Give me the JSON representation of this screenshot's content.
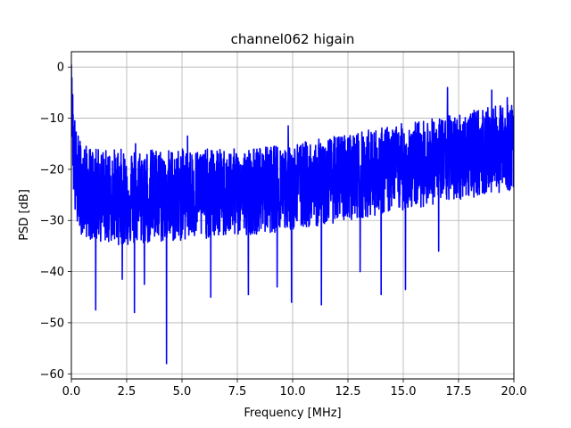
{
  "chart_data": {
    "type": "line",
    "title": "channel062 higain",
    "xlabel": "Frequency [MHz]",
    "ylabel": "PSD [dB]",
    "xlim": [
      0,
      20
    ],
    "ylim": [
      -61,
      3
    ],
    "xticks": [
      0,
      2.5,
      5,
      7.5,
      10,
      12.5,
      15,
      17.5,
      20
    ],
    "xtick_labels": [
      "0.0",
      "2.5",
      "5.0",
      "7.5",
      "10.0",
      "12.5",
      "15.0",
      "17.5",
      "20.0"
    ],
    "yticks": [
      0,
      -10,
      -20,
      -30,
      -40,
      -50,
      -60
    ],
    "ytick_labels": [
      "0",
      "−10",
      "−20",
      "−30",
      "−40",
      "−50",
      "−60"
    ],
    "grid": true,
    "series": [
      {
        "color": "#0000ff",
        "envelope": {
          "x": [
            0.0,
            0.1,
            0.2,
            0.5,
            1.0,
            2.5,
            5.0,
            7.5,
            10.0,
            12.5,
            15.0,
            17.5,
            20.0
          ],
          "upper": [
            0.0,
            -6,
            -12,
            -15,
            -16,
            -16,
            -16,
            -16,
            -15,
            -13,
            -11,
            -9,
            -7
          ],
          "lower": [
            -10,
            -25,
            -31,
            -33,
            -34,
            -35,
            -34,
            -33,
            -32,
            -30,
            -28,
            -26,
            -24
          ],
          "center": [
            -5,
            -16,
            -22,
            -24,
            -25,
            -25.5,
            -25,
            -24.5,
            -23.5,
            -21.5,
            -19.5,
            -17.5,
            -15.5
          ]
        },
        "peaks": [
          {
            "x": 0.0,
            "y": 0.5
          },
          {
            "x": 2.9,
            "y": -15
          },
          {
            "x": 5.25,
            "y": -13.5
          },
          {
            "x": 9.8,
            "y": -11.5
          },
          {
            "x": 14.0,
            "y": -9.5
          },
          {
            "x": 17.0,
            "y": -4
          },
          {
            "x": 19.0,
            "y": -4.5
          },
          {
            "x": 19.7,
            "y": -6
          }
        ],
        "dips": [
          {
            "x": 1.1,
            "y": -47.5
          },
          {
            "x": 2.3,
            "y": -41.5
          },
          {
            "x": 2.85,
            "y": -48
          },
          {
            "x": 3.3,
            "y": -42.5
          },
          {
            "x": 4.3,
            "y": -58
          },
          {
            "x": 6.3,
            "y": -45
          },
          {
            "x": 8.0,
            "y": -44.5
          },
          {
            "x": 9.3,
            "y": -43
          },
          {
            "x": 9.95,
            "y": -46
          },
          {
            "x": 11.3,
            "y": -46.5
          },
          {
            "x": 13.05,
            "y": -40
          },
          {
            "x": 14.0,
            "y": -44.5
          },
          {
            "x": 15.1,
            "y": -43.5
          },
          {
            "x": 16.6,
            "y": -36
          }
        ]
      }
    ]
  }
}
